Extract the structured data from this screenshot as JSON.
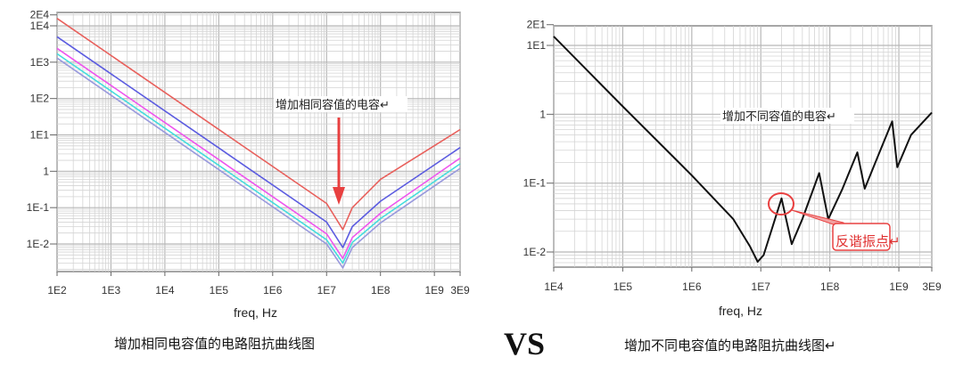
{
  "chart_data": [
    {
      "type": "line",
      "xlabel": "freq, Hz",
      "x_scale": "log",
      "y_scale": "log",
      "xlim": [
        100,
        3000000000
      ],
      "ylim": [
        0.002,
        20000
      ],
      "x_ticks": [
        "1E2",
        "1E3",
        "1E4",
        "1E5",
        "1E6",
        "1E7",
        "1E8",
        "1E9",
        "3E9"
      ],
      "x_tick_values": [
        100.0,
        1000.0,
        10000.0,
        100000.0,
        1000000.0,
        10000000.0,
        100000000.0,
        1000000000.0,
        3000000000.0
      ],
      "y_ticks": [
        "2E4",
        "1E4",
        "1E3",
        "1E2",
        "1E1",
        "1",
        "1E-1",
        "1E-2"
      ],
      "y_tick_values": [
        20000.0,
        10000.0,
        1000.0,
        100.0,
        10.0,
        1,
        0.1,
        0.01
      ],
      "grid": true,
      "annotation": "增加相同容值的电容↵",
      "caption": "增加相同电容值的电路阻抗曲线图",
      "series": [
        {
          "color": "#e8605c",
          "points": [
            [
              100.0,
              16000
            ],
            [
              10000000.0,
              0.13
            ],
            [
              20000000.0,
              0.025
            ],
            [
              30000000.0,
              0.1
            ],
            [
              100000000.0,
              0.6
            ],
            [
              3000000000.0,
              14
            ]
          ]
        },
        {
          "color": "#5c5ce0",
          "points": [
            [
              100.0,
              5000
            ],
            [
              10000000.0,
              0.04
            ],
            [
              20000000.0,
              0.008
            ],
            [
              30000000.0,
              0.03
            ],
            [
              100000000.0,
              0.15
            ],
            [
              3000000000.0,
              4.5
            ]
          ]
        },
        {
          "color": "#ee55ee",
          "points": [
            [
              100.0,
              2400
            ],
            [
              10000000.0,
              0.019
            ],
            [
              20000000.0,
              0.004
            ],
            [
              30000000.0,
              0.015
            ],
            [
              100000000.0,
              0.07
            ],
            [
              3000000000.0,
              2.3
            ]
          ]
        },
        {
          "color": "#44dddd",
          "points": [
            [
              100.0,
              1700
            ],
            [
              10000000.0,
              0.013
            ],
            [
              20000000.0,
              0.003
            ],
            [
              30000000.0,
              0.011
            ],
            [
              100000000.0,
              0.05
            ],
            [
              3000000000.0,
              1.6
            ]
          ]
        },
        {
          "color": "#9999dd",
          "points": [
            [
              100.0,
              1300
            ],
            [
              10000000.0,
              0.01
            ],
            [
              20000000.0,
              0.0022
            ],
            [
              30000000.0,
              0.008
            ],
            [
              100000000.0,
              0.038
            ],
            [
              3000000000.0,
              1.2
            ]
          ]
        }
      ]
    },
    {
      "type": "line",
      "xlabel": "freq, Hz",
      "x_scale": "log",
      "y_scale": "log",
      "xlim": [
        10000,
        3000000000
      ],
      "ylim": [
        0.006,
        20
      ],
      "x_ticks": [
        "1E4",
        "1E5",
        "1E6",
        "1E7",
        "1E8",
        "1E9",
        "3E9"
      ],
      "x_tick_values": [
        10000.0,
        100000.0,
        1000000.0,
        10000000.0,
        100000000.0,
        1000000000.0,
        3000000000.0
      ],
      "y_ticks": [
        "2E1",
        "1E1",
        "1",
        "1E-1",
        "1E-2"
      ],
      "y_tick_values": [
        20,
        10,
        1,
        0.1,
        0.01
      ],
      "grid": true,
      "annotation": "增加不同容值的电容↵",
      "callout": "反谐振点↵",
      "caption": "增加不同电容值的电路阻抗曲线图↵",
      "series": [
        {
          "color": "#111111",
          "points": [
            [
              10000.0,
              13.5
            ],
            [
              100000.0,
              1.3
            ],
            [
              1000000.0,
              0.13
            ],
            [
              4000000.0,
              0.03
            ],
            [
              7000000.0,
              0.012
            ],
            [
              9000000.0,
              0.0072
            ],
            [
              11000000.0,
              0.009
            ],
            [
              20000000.0,
              0.06
            ],
            [
              28000000.0,
              0.013
            ],
            [
              40000000.0,
              0.03
            ],
            [
              70000000.0,
              0.14
            ],
            [
              95000000.0,
              0.03
            ],
            [
              150000000.0,
              0.08
            ],
            [
              250000000.0,
              0.28
            ],
            [
              320000000.0,
              0.083
            ],
            [
              500000000.0,
              0.25
            ],
            [
              800000000.0,
              0.79
            ],
            [
              950000000.0,
              0.17
            ],
            [
              1500000000.0,
              0.5
            ],
            [
              3000000000.0,
              1.06
            ]
          ]
        }
      ]
    }
  ],
  "vs_label": "VS"
}
